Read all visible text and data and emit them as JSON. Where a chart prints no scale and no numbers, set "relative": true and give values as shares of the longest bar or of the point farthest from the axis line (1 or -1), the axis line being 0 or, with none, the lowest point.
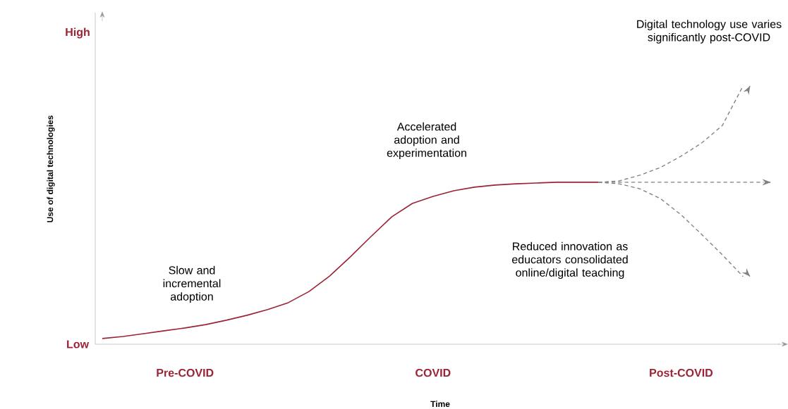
{
  "chart_data": {
    "type": "line",
    "relative": true,
    "xlabel": "Time",
    "ylabel": "Use of digital technologies",
    "categories": [
      null,
      null,
      null,
      null,
      "Pre-COVID",
      null,
      null,
      null,
      null,
      null,
      null,
      null,
      null,
      null,
      null,
      null,
      "COVID",
      null,
      null,
      null,
      null,
      null,
      null,
      null,
      null,
      null,
      null,
      null,
      "Post-COVID",
      null,
      null,
      null,
      null
    ],
    "series": [
      {
        "color": "#9b2335",
        "line_style": "solid",
        "values": [
          0.022,
          0.03,
          0.041,
          0.052,
          0.063,
          0.076,
          0.093,
          0.112,
          0.134,
          0.161,
          0.204,
          0.264,
          0.338,
          0.417,
          0.493,
          0.545,
          0.572,
          0.594,
          0.608,
          0.616,
          0.621,
          0.624,
          0.627,
          0.627,
          0.627,
          null,
          null,
          null,
          null,
          null,
          null,
          null,
          null
        ]
      },
      {
        "color": "#808080",
        "line_style": "dashed",
        "values": [
          null,
          null,
          null,
          null,
          null,
          null,
          null,
          null,
          null,
          null,
          null,
          null,
          null,
          null,
          null,
          null,
          null,
          null,
          null,
          null,
          null,
          null,
          null,
          null,
          0.627,
          0.632,
          0.654,
          0.684,
          0.728,
          0.779,
          0.847,
          1.0,
          null
        ]
      },
      {
        "color": "#808080",
        "line_style": "dashed",
        "values": [
          null,
          null,
          null,
          null,
          null,
          null,
          null,
          null,
          null,
          null,
          null,
          null,
          null,
          null,
          null,
          null,
          null,
          null,
          null,
          null,
          null,
          null,
          null,
          null,
          0.627,
          null,
          null,
          null,
          null,
          null,
          null,
          null,
          0.627
        ]
      },
      {
        "color": "#808080",
        "line_style": "dashed",
        "values": [
          null,
          null,
          null,
          null,
          null,
          null,
          null,
          null,
          null,
          null,
          null,
          null,
          null,
          null,
          null,
          null,
          null,
          null,
          null,
          null,
          null,
          null,
          null,
          null,
          0.627,
          0.621,
          0.602,
          0.564,
          0.501,
          0.425,
          0.346,
          0.262,
          null
        ]
      }
    ],
    "annotations": [
      "Slow and incremental adoption",
      "Accelerated adoption and experimentation",
      "Reduced innovation as educators consolidated online/digital teaching",
      "Digital technology use varies significantly post-COVID",
      "High",
      "Low"
    ]
  }
}
